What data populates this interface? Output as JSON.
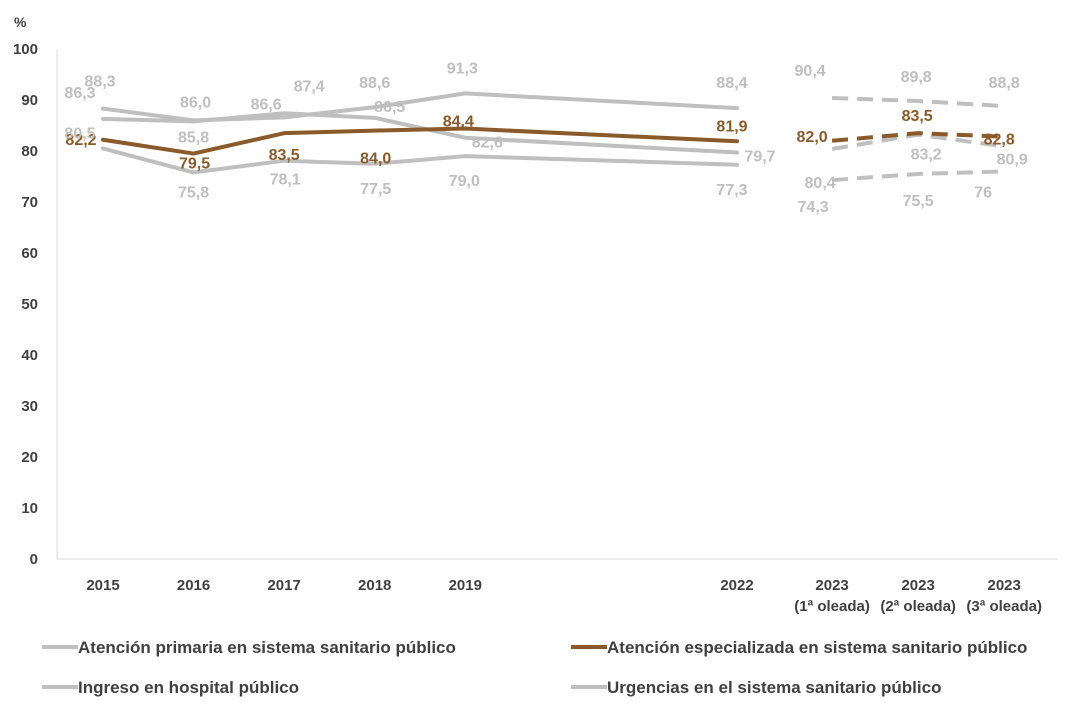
{
  "chart_data": {
    "type": "line",
    "ylabel": "%",
    "ylim": [
      0,
      100
    ],
    "yticks": [
      0,
      10,
      20,
      30,
      40,
      50,
      60,
      70,
      80,
      90,
      100
    ],
    "categories": [
      [
        "2015"
      ],
      [
        "2016"
      ],
      [
        "2017"
      ],
      [
        "2018"
      ],
      [
        "2019"
      ],
      [
        "2022"
      ],
      [
        "2023",
        "(1ª oleada)"
      ],
      [
        "2023",
        "(2ª oleada)"
      ],
      [
        "2023",
        "(3ª oleada)"
      ]
    ],
    "x_positions": [
      2015,
      2016,
      2017,
      2018,
      2019,
      2022,
      2023.05,
      2024,
      2024.95
    ],
    "solid_until_index": 5,
    "dashed_from_index": 6,
    "grid": false,
    "legend_position": "bottom",
    "colors": {
      "accent": "#8B5A2B",
      "grey": "#BFBFBF",
      "axis": "#D9D9D9",
      "text": "#404040"
    },
    "series": [
      {
        "name": "Atención primaria en sistema sanitario público",
        "color": "#BFBFBF",
        "values": [
          86.3,
          85.8,
          87.4,
          86.5,
          82.6,
          79.7,
          80.4,
          83.2,
          80.9
        ],
        "labels": [
          "86,3",
          "85,8",
          "87,4",
          "86,5",
          "82,6",
          "79,7",
          "80,4",
          "83,2",
          "80,9"
        ]
      },
      {
        "name": "Atención especializada en sistema sanitario público",
        "color": "#8B5A2B",
        "values": [
          82.2,
          79.5,
          83.5,
          84.0,
          84.4,
          81.9,
          82.0,
          83.5,
          82.8
        ],
        "labels": [
          "82,2",
          "79,5",
          "83,5",
          "84,0",
          "84,4",
          "81,9",
          "82,0",
          "83,5",
          "82,8"
        ]
      },
      {
        "name": "Ingreso en hospital público",
        "color": "#BFBFBF",
        "values": [
          88.3,
          86.0,
          86.6,
          88.6,
          91.3,
          88.4,
          90.4,
          89.8,
          88.8
        ],
        "labels": [
          "88,3",
          "86,0",
          "86,6",
          "88,6",
          "91,3",
          "88,4",
          "90,4",
          "89,8",
          "88,8"
        ]
      },
      {
        "name": "Urgencias en el sistema sanitario público",
        "color": "#BFBFBF",
        "values": [
          80.5,
          75.8,
          78.1,
          77.5,
          79.0,
          77.3,
          74.3,
          75.5,
          76.0
        ],
        "labels": [
          "80,5",
          "75,8",
          "78,1",
          "77,5",
          "79,0",
          "77,3",
          "74,3",
          "75,5",
          "76"
        ]
      }
    ]
  }
}
